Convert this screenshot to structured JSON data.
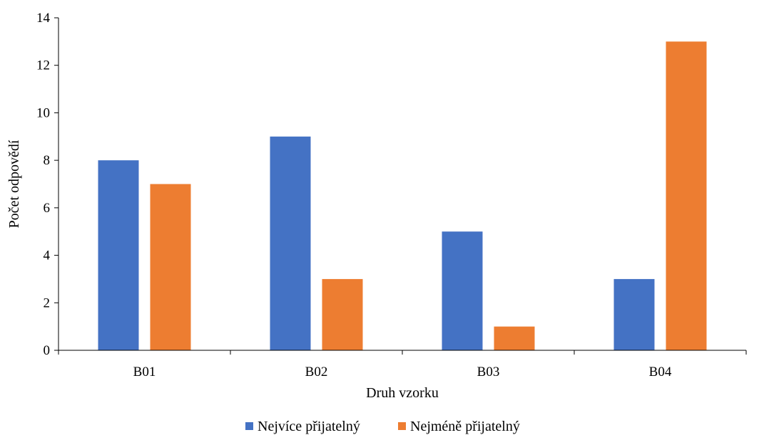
{
  "chart_data": {
    "type": "bar",
    "categories": [
      "B01",
      "B02",
      "B03",
      "B04"
    ],
    "series": [
      {
        "name": "Nejvíce přijatelný",
        "color": "#4472C4",
        "values": [
          8,
          9,
          5,
          3
        ]
      },
      {
        "name": "Nejméně přijatelný",
        "color": "#ED7D31",
        "values": [
          7,
          3,
          1,
          13
        ]
      }
    ],
    "xlabel": "Druh vzorku",
    "ylabel": "Počet odpovědí",
    "ylim": [
      0,
      14
    ],
    "yticks": [
      "0",
      "2",
      "4",
      "6",
      "8",
      "10",
      "12",
      "14"
    ],
    "grid": false,
    "legend_position": "bottom"
  }
}
